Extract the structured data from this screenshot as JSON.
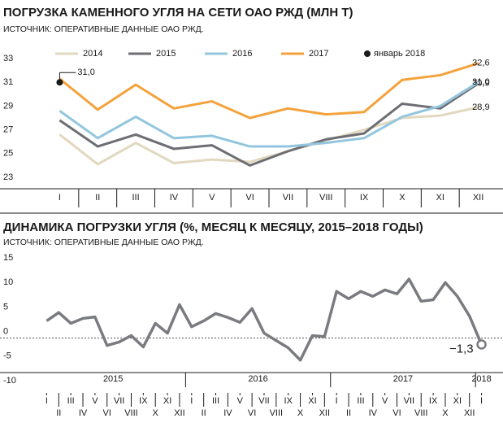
{
  "chart_data": [
    {
      "type": "line",
      "title": "ПОГРУЗКА КАМЕННОГО УГЛЯ НА СЕТИ ОАО РЖД (МЛН Т)",
      "subtitle": "ИСТОЧНИК: ОПЕРАТИВНЫЕ ДАННЫЕ ОАО РЖД.",
      "categories": [
        "I",
        "II",
        "III",
        "IV",
        "V",
        "VI",
        "VII",
        "VIII",
        "IX",
        "X",
        "XI",
        "XII"
      ],
      "series": [
        {
          "name": "2014",
          "color": "#e2d8c0",
          "values": [
            26.6,
            24.1,
            25.9,
            24.2,
            24.5,
            24.3,
            25.2,
            26.1,
            27.0,
            28.0,
            28.2,
            28.9
          ],
          "value_labels": [
            null,
            null,
            null,
            null,
            null,
            null,
            null,
            null,
            null,
            null,
            null,
            "28,9"
          ]
        },
        {
          "name": "2015",
          "color": "#6d6e73",
          "values": [
            27.8,
            25.6,
            26.6,
            25.4,
            25.7,
            24.0,
            25.2,
            26.2,
            26.7,
            29.2,
            28.8,
            30.9
          ],
          "value_labels": [
            null,
            null,
            null,
            null,
            null,
            null,
            null,
            null,
            null,
            null,
            null,
            "30,9"
          ]
        },
        {
          "name": "2016",
          "color": "#93c6de",
          "values": [
            28.6,
            26.3,
            28.1,
            26.3,
            26.5,
            25.6,
            25.6,
            25.9,
            26.3,
            28.1,
            29.0,
            31.0
          ],
          "value_labels": [
            null,
            null,
            null,
            null,
            null,
            null,
            null,
            null,
            null,
            null,
            null,
            "31,0"
          ]
        },
        {
          "name": "2017",
          "color": "#f4a23c",
          "values": [
            31.3,
            28.7,
            30.8,
            28.8,
            29.4,
            28.0,
            28.8,
            28.3,
            28.5,
            31.2,
            31.6,
            32.6
          ],
          "value_labels": [
            null,
            null,
            null,
            null,
            null,
            null,
            null,
            null,
            null,
            null,
            null,
            "32,6"
          ]
        },
        {
          "name": "январь 2018",
          "color": "#1a1a1a",
          "marker": "point",
          "values": [
            31.0,
            null,
            null,
            null,
            null,
            null,
            null,
            null,
            null,
            null,
            null,
            null
          ],
          "value_labels": [
            "31,0",
            null,
            null,
            null,
            null,
            null,
            null,
            null,
            null,
            null,
            null,
            null
          ]
        }
      ],
      "ylim": [
        23,
        33
      ],
      "yticks": [
        23,
        25,
        27,
        29,
        31,
        33
      ]
    },
    {
      "type": "line",
      "title": "ДИНАМИКА ПОГРУЗКИ УГЛЯ (%, МЕСЯЦ К МЕСЯЦУ, 2015–2018 ГОДЫ)",
      "subtitle": "ИСТОЧНИК: ОПЕРАТИВНЫЕ ДАННЫЕ ОАО РЖД.",
      "groups": [
        {
          "name": "2015",
          "categories": [
            "I",
            "II",
            "III",
            "IV",
            "V",
            "VI",
            "VII",
            "VIII",
            "IX",
            "X",
            "XI",
            "XII"
          ]
        },
        {
          "name": "2016",
          "categories": [
            "I",
            "II",
            "III",
            "IV",
            "V",
            "VI",
            "VII",
            "VIII",
            "IX",
            "X",
            "XI",
            "XII"
          ]
        },
        {
          "name": "2017",
          "categories": [
            "I",
            "II",
            "III",
            "IV",
            "V",
            "VI",
            "VII",
            "VIII",
            "IX",
            "X",
            "XI",
            "XII"
          ]
        },
        {
          "name": "2018",
          "categories": [
            "I"
          ]
        }
      ],
      "series": [
        {
          "color": "#7a7b80",
          "values": [
            3.5,
            5.2,
            3.0,
            4.0,
            4.3,
            -1.5,
            -0.8,
            0.5,
            -1.8,
            3.0,
            1.0,
            6.8,
            2.3,
            3.5,
            5.0,
            4.2,
            3.2,
            6.0,
            1.0,
            -0.5,
            -2.0,
            -4.5,
            0.5,
            0.3,
            9.5,
            8.0,
            9.5,
            8.5,
            9.8,
            9.0,
            12.0,
            7.5,
            7.8,
            11.3,
            8.5,
            4.5,
            -1.3
          ],
          "value_labels": [
            null,
            null,
            null,
            null,
            null,
            null,
            null,
            null,
            null,
            null,
            null,
            null,
            null,
            null,
            null,
            null,
            null,
            null,
            null,
            null,
            null,
            null,
            null,
            null,
            null,
            null,
            null,
            null,
            null,
            null,
            null,
            null,
            null,
            null,
            null,
            null,
            "−1,3"
          ]
        }
      ],
      "ylim": [
        -10,
        15
      ],
      "yticks": [
        -10,
        -5,
        0,
        5,
        10,
        15
      ]
    }
  ]
}
